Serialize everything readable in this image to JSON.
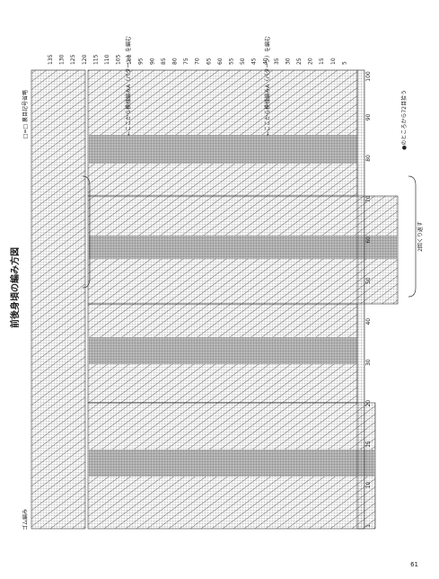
{
  "header": {
    "title": "前後身頃の編み方図",
    "legend": "□=□ 裏目記号省略",
    "note": "●のところから72目拾う"
  },
  "chart": {
    "row_numbers": [
      5,
      10,
      15,
      20,
      25,
      30,
      35,
      40,
      45,
      50,
      55,
      60,
      65,
      70,
      75,
      80,
      85,
      90,
      95,
      100,
      105,
      110,
      115,
      120,
      125,
      130,
      135
    ],
    "stitch_labels": [
      "1",
      "10",
      "15",
      "20",
      "30",
      "40",
      "50",
      "60",
      "70",
      "80",
      "90",
      "100"
    ],
    "top_notes": [
      "←ここから模様編みA（パターン）を編む",
      "←ここから模様編みA（パターン）を編む"
    ]
  },
  "repeat_note": "2回くり返す",
  "edge_label": "ゴム編み",
  "page_number": "61"
}
